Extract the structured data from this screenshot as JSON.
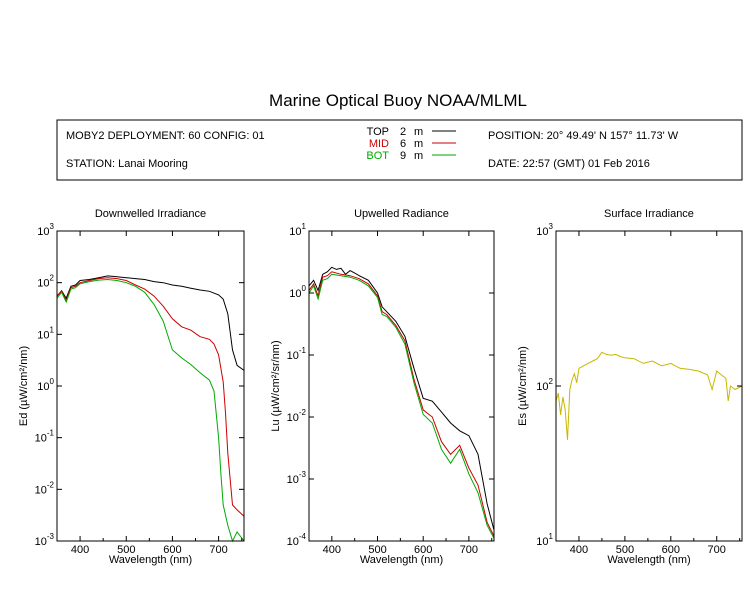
{
  "title": "Marine Optical Buoy NOAA/MLML",
  "info": {
    "deployment": "MOBY2 DEPLOYMENT: 60 CONFIG: 01",
    "station": "STATION: Lanai Mooring",
    "position": "POSITION: 20° 49.49' N   157° 11.73' W",
    "date": "DATE: 22:57 (GMT) 01 Feb 2016",
    "legend": [
      {
        "name": "TOP",
        "depth": "2",
        "unit": "m",
        "color": "#000000"
      },
      {
        "name": "MID",
        "depth": "6",
        "unit": "m",
        "color": "#cc0000"
      },
      {
        "name": "BOT",
        "depth": "9",
        "unit": "m",
        "color": "#00aa00"
      }
    ]
  },
  "chart_data": [
    {
      "type": "line",
      "title": "Downwelled Irradiance",
      "xlabel": "Wavelength (nm)",
      "ylabel": "Ed  (µW/cm²/nm)",
      "xlim": [
        350,
        755
      ],
      "ylim": [
        0.001,
        1000
      ],
      "yscale": "log",
      "xticks": [
        "400",
        "500",
        "600",
        "700"
      ],
      "yticks": [
        "10-3",
        "10-2",
        "10-1",
        "10 0",
        "10 1",
        "10 2",
        "10 3"
      ],
      "series": [
        {
          "name": "TOP",
          "color": "#000000",
          "x": [
            350,
            360,
            370,
            380,
            390,
            400,
            420,
            440,
            460,
            480,
            500,
            520,
            540,
            560,
            580,
            600,
            620,
            640,
            660,
            680,
            700,
            710,
            720,
            730,
            740,
            755
          ],
          "y": [
            55,
            70,
            50,
            85,
            90,
            110,
            115,
            125,
            135,
            130,
            125,
            120,
            115,
            105,
            100,
            90,
            85,
            78,
            72,
            68,
            58,
            48,
            25,
            5,
            2.5,
            2
          ]
        },
        {
          "name": "MID",
          "color": "#cc0000",
          "x": [
            350,
            360,
            370,
            380,
            390,
            400,
            420,
            440,
            460,
            480,
            500,
            520,
            540,
            560,
            580,
            600,
            620,
            640,
            660,
            680,
            690,
            700,
            710,
            715,
            720,
            730,
            740,
            755
          ],
          "y": [
            55,
            68,
            45,
            80,
            85,
            100,
            110,
            120,
            125,
            120,
            110,
            90,
            75,
            55,
            35,
            20,
            14,
            12,
            9,
            8,
            6.5,
            4,
            1.2,
            0.3,
            0.05,
            0.005,
            0.004,
            0.003
          ]
        },
        {
          "name": "BOT",
          "color": "#00aa00",
          "x": [
            350,
            360,
            370,
            380,
            390,
            400,
            420,
            440,
            460,
            480,
            500,
            520,
            540,
            560,
            580,
            600,
            620,
            640,
            660,
            680,
            690,
            700,
            705,
            710,
            720,
            730,
            740,
            755
          ],
          "y": [
            50,
            65,
            42,
            75,
            80,
            95,
            105,
            112,
            115,
            110,
            100,
            85,
            65,
            38,
            18,
            5,
            3.5,
            2.6,
            1.8,
            1.3,
            0.8,
            0.1,
            0.02,
            0.005,
            0.002,
            0.001,
            0.0015,
            0.001
          ]
        }
      ]
    },
    {
      "type": "line",
      "title": "Upwelled Radiance",
      "xlabel": "Wavelength (nm)",
      "ylabel": "Lu  (µW/cm²/sr/nm)",
      "xlim": [
        350,
        755
      ],
      "ylim": [
        0.0001,
        10
      ],
      "yscale": "log",
      "xticks": [
        "400",
        "500",
        "600",
        "700"
      ],
      "yticks": [
        "10-4",
        "10-3",
        "10-2",
        "10-1",
        "10 0",
        "10 1"
      ],
      "series": [
        {
          "name": "TOP",
          "color": "#000000",
          "x": [
            350,
            360,
            370,
            380,
            390,
            400,
            410,
            420,
            430,
            440,
            450,
            460,
            480,
            500,
            510,
            520,
            540,
            560,
            580,
            600,
            620,
            640,
            660,
            680,
            700,
            720,
            740,
            755
          ],
          "y": [
            1.3,
            1.6,
            1.1,
            2.0,
            2.2,
            2.6,
            2.4,
            2.5,
            2.0,
            2.3,
            2.1,
            1.9,
            1.6,
            1.0,
            0.6,
            0.5,
            0.35,
            0.2,
            0.06,
            0.02,
            0.018,
            0.012,
            0.008,
            0.006,
            0.005,
            0.0025,
            0.0004,
            0.00015
          ]
        },
        {
          "name": "MID",
          "color": "#cc0000",
          "x": [
            350,
            360,
            370,
            380,
            390,
            400,
            420,
            440,
            460,
            480,
            500,
            510,
            520,
            540,
            560,
            580,
            600,
            620,
            640,
            660,
            680,
            700,
            720,
            740,
            755
          ],
          "y": [
            1.1,
            1.4,
            0.9,
            1.8,
            1.9,
            2.2,
            2.0,
            1.9,
            1.7,
            1.4,
            0.9,
            0.5,
            0.45,
            0.3,
            0.17,
            0.04,
            0.013,
            0.01,
            0.004,
            0.0025,
            0.0035,
            0.0015,
            0.0008,
            0.0002,
            0.00012
          ]
        },
        {
          "name": "BOT",
          "color": "#00aa00",
          "x": [
            350,
            360,
            370,
            380,
            390,
            400,
            420,
            440,
            460,
            480,
            500,
            510,
            520,
            540,
            560,
            580,
            600,
            620,
            640,
            660,
            680,
            700,
            720,
            740,
            755
          ],
          "y": [
            1.0,
            1.3,
            0.8,
            1.6,
            1.7,
            2.0,
            1.9,
            1.8,
            1.6,
            1.3,
            0.85,
            0.45,
            0.42,
            0.28,
            0.15,
            0.035,
            0.011,
            0.008,
            0.003,
            0.0018,
            0.003,
            0.0012,
            0.0006,
            0.00018,
            0.00011
          ]
        }
      ]
    },
    {
      "type": "line",
      "title": "Surface Irradiance",
      "xlabel": "Wavelength (nm)",
      "ylabel": "Es  (µW/cm²/nm)",
      "xlim": [
        350,
        755
      ],
      "ylim": [
        10,
        1000
      ],
      "yscale": "log",
      "xticks": [
        "400",
        "500",
        "600",
        "700"
      ],
      "yticks": [
        "10 1",
        "10 2",
        "10 3"
      ],
      "series": [
        {
          "name": "Es",
          "color": "#c8b800",
          "x": [
            350,
            355,
            360,
            365,
            370,
            375,
            380,
            385,
            390,
            395,
            400,
            410,
            420,
            430,
            440,
            450,
            460,
            470,
            480,
            490,
            500,
            520,
            540,
            560,
            580,
            600,
            620,
            640,
            660,
            680,
            690,
            700,
            710,
            720,
            725,
            730,
            740,
            755
          ],
          "y": [
            80,
            90,
            65,
            85,
            70,
            45,
            95,
            110,
            120,
            105,
            130,
            135,
            140,
            145,
            150,
            165,
            160,
            158,
            160,
            155,
            152,
            150,
            140,
            145,
            135,
            140,
            130,
            128,
            125,
            118,
            95,
            125,
            118,
            112,
            80,
            100,
            95,
            100
          ]
        }
      ]
    }
  ]
}
